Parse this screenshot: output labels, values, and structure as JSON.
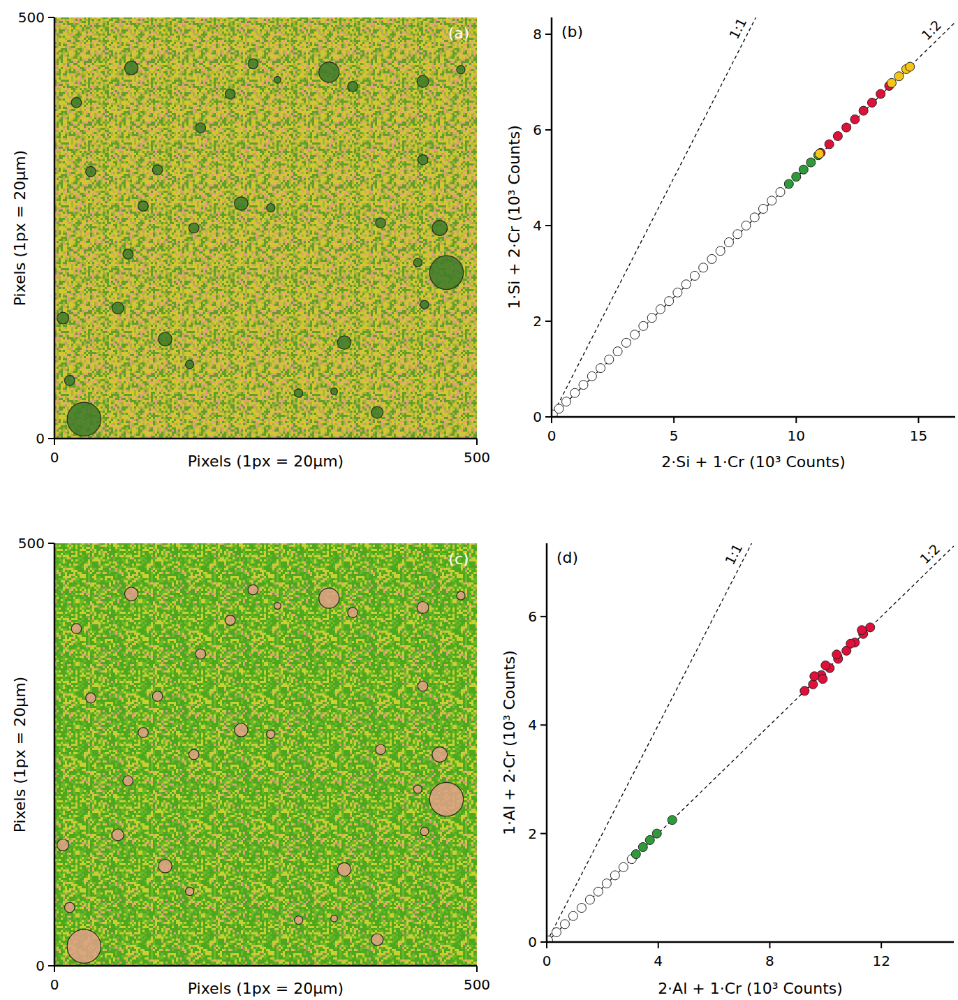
{
  "chart_data": [
    {
      "type": "image",
      "title": "(a)",
      "x_label": "Pixels (1px = 20μm)",
      "y_label": "Pixels (1px = 20μm)",
      "xlim": [
        0,
        500
      ],
      "ylim": [
        0,
        500
      ],
      "xticks": [
        0,
        500
      ],
      "yticks": [
        0,
        500
      ],
      "color": "#3d7a2a",
      "grains": {
        "x": [
          91,
          325,
          235,
          353,
          436,
          481,
          208,
          264,
          26,
          173,
          436,
          122,
          43,
          221,
          105,
          256,
          165,
          456,
          386,
          87,
          464,
          430,
          75,
          10,
          438,
          131,
          343,
          160,
          18,
          289,
          382,
          35,
          331
        ],
        "y": [
          440,
          435,
          445,
          418,
          424,
          438,
          409,
          426,
          399,
          369,
          331,
          319,
          317,
          279,
          276,
          274,
          250,
          250,
          256,
          219,
          197,
          209,
          155,
          143,
          159,
          118,
          114,
          88,
          69,
          54,
          31,
          23,
          56
        ],
        "r": [
          8,
          12,
          6,
          6,
          7,
          5,
          6,
          4,
          6,
          6,
          6,
          6,
          6,
          8,
          6,
          5,
          6,
          9,
          6,
          6,
          20,
          5,
          7,
          7,
          5,
          8,
          8,
          5,
          6,
          5,
          7,
          20,
          4
        ]
      }
    },
    {
      "type": "scatter",
      "title": "(b)",
      "x_label": "2·Si + 1·Cr (10³ Counts)",
      "y_label": "1·Si + 2·Cr (10³ Counts)",
      "xlim": [
        0,
        16.5
      ],
      "ylim": [
        0,
        8.35
      ],
      "xticks": [
        0,
        5,
        10,
        15
      ],
      "yticks": [
        0,
        2,
        4,
        6,
        8
      ],
      "reference_lines": [
        {
          "label": "1:1",
          "slope": 1
        },
        {
          "label": "1:2",
          "slope": 0.5
        }
      ],
      "series": [
        {
          "color": "#ffffff",
          "x": [
            0.05,
            0.3,
            0.6,
            0.95,
            1.3,
            1.65,
            2.0,
            2.35,
            2.7,
            3.05,
            3.4,
            3.75,
            4.1,
            4.45,
            4.8,
            5.15,
            5.5,
            5.85,
            6.2,
            6.55,
            6.9,
            7.25,
            7.6,
            7.95,
            8.3,
            8.65,
            9.0,
            9.35
          ],
          "values": [
            0.05,
            0.17,
            0.32,
            0.5,
            0.67,
            0.85,
            1.02,
            1.2,
            1.37,
            1.55,
            1.72,
            1.9,
            2.07,
            2.25,
            2.42,
            2.6,
            2.77,
            2.95,
            3.12,
            3.3,
            3.47,
            3.65,
            3.82,
            4.0,
            4.17,
            4.35,
            4.52,
            4.7
          ]
        },
        {
          "color": "#2e9a3a",
          "x": [
            9.7,
            10.0,
            10.3,
            10.6,
            10.9
          ],
          "values": [
            4.87,
            5.02,
            5.17,
            5.32,
            5.47
          ]
        },
        {
          "color": "#e0103a",
          "x": [
            11.0,
            11.35,
            11.7,
            12.05,
            12.4,
            12.75,
            13.1,
            13.45,
            13.8
          ],
          "values": [
            5.52,
            5.7,
            5.87,
            6.05,
            6.22,
            6.4,
            6.57,
            6.75,
            6.92
          ]
        },
        {
          "color": "#f5c518",
          "x": [
            10.95,
            13.9,
            14.2,
            14.5,
            14.65
          ],
          "values": [
            5.5,
            6.98,
            7.12,
            7.27,
            7.32
          ]
        }
      ]
    },
    {
      "type": "image",
      "title": "(c)",
      "x_label": "Pixels (1px = 20μm)",
      "y_label": "Pixels (1px = 20μm)",
      "xlim": [
        0,
        500
      ],
      "ylim": [
        0,
        500
      ],
      "xticks": [
        0,
        500
      ],
      "yticks": [
        0,
        500
      ],
      "color": "#e2a088",
      "grains": {
        "x": [
          91,
          325,
          235,
          353,
          436,
          481,
          208,
          264,
          26,
          173,
          436,
          122,
          43,
          221,
          105,
          256,
          165,
          456,
          386,
          87,
          464,
          430,
          75,
          10,
          438,
          131,
          343,
          160,
          18,
          289,
          382,
          35,
          331
        ],
        "y": [
          440,
          435,
          445,
          418,
          424,
          438,
          409,
          426,
          399,
          369,
          331,
          319,
          317,
          279,
          276,
          274,
          250,
          250,
          256,
          219,
          197,
          209,
          155,
          143,
          159,
          118,
          114,
          88,
          69,
          54,
          31,
          23,
          56
        ],
        "r": [
          8,
          12,
          6,
          6,
          7,
          5,
          6,
          4,
          6,
          6,
          6,
          6,
          6,
          8,
          6,
          5,
          6,
          9,
          6,
          6,
          20,
          5,
          7,
          7,
          5,
          8,
          8,
          5,
          6,
          5,
          7,
          20,
          4
        ]
      }
    },
    {
      "type": "scatter",
      "title": "(d)",
      "x_label": "2·Al + 1·Cr (10³ Counts)",
      "y_label": "1·Al + 2·Cr (10³ Counts)",
      "xlim": [
        0,
        14.6
      ],
      "ylim": [
        0,
        7.35
      ],
      "xticks": [
        0,
        4,
        8,
        12
      ],
      "yticks": [
        0,
        2,
        4,
        6
      ],
      "reference_lines": [
        {
          "label": "1:1",
          "slope": 1
        },
        {
          "label": "1:2",
          "slope": 0.5
        }
      ],
      "series": [
        {
          "color": "#ffffff",
          "x": [
            0.05,
            0.35,
            0.65,
            0.95,
            1.25,
            1.55,
            1.85,
            2.15,
            2.45,
            2.75,
            3.05
          ],
          "values": [
            0.03,
            0.18,
            0.33,
            0.48,
            0.63,
            0.78,
            0.93,
            1.08,
            1.23,
            1.38,
            1.53
          ]
        },
        {
          "color": "#2e9a3a",
          "x": [
            3.2,
            3.45,
            3.7,
            3.95,
            4.5
          ],
          "values": [
            1.62,
            1.75,
            1.88,
            2.0,
            2.25
          ]
        },
        {
          "color": "#e0103a",
          "x": [
            9.25,
            9.55,
            9.85,
            10.15,
            10.45,
            10.75,
            11.05,
            11.35,
            11.6,
            9.6,
            10.0,
            10.4,
            10.9,
            11.3,
            9.9
          ],
          "values": [
            4.63,
            4.75,
            4.92,
            5.05,
            5.22,
            5.37,
            5.52,
            5.68,
            5.8,
            4.9,
            5.1,
            5.3,
            5.5,
            5.75,
            4.85
          ]
        }
      ]
    }
  ]
}
